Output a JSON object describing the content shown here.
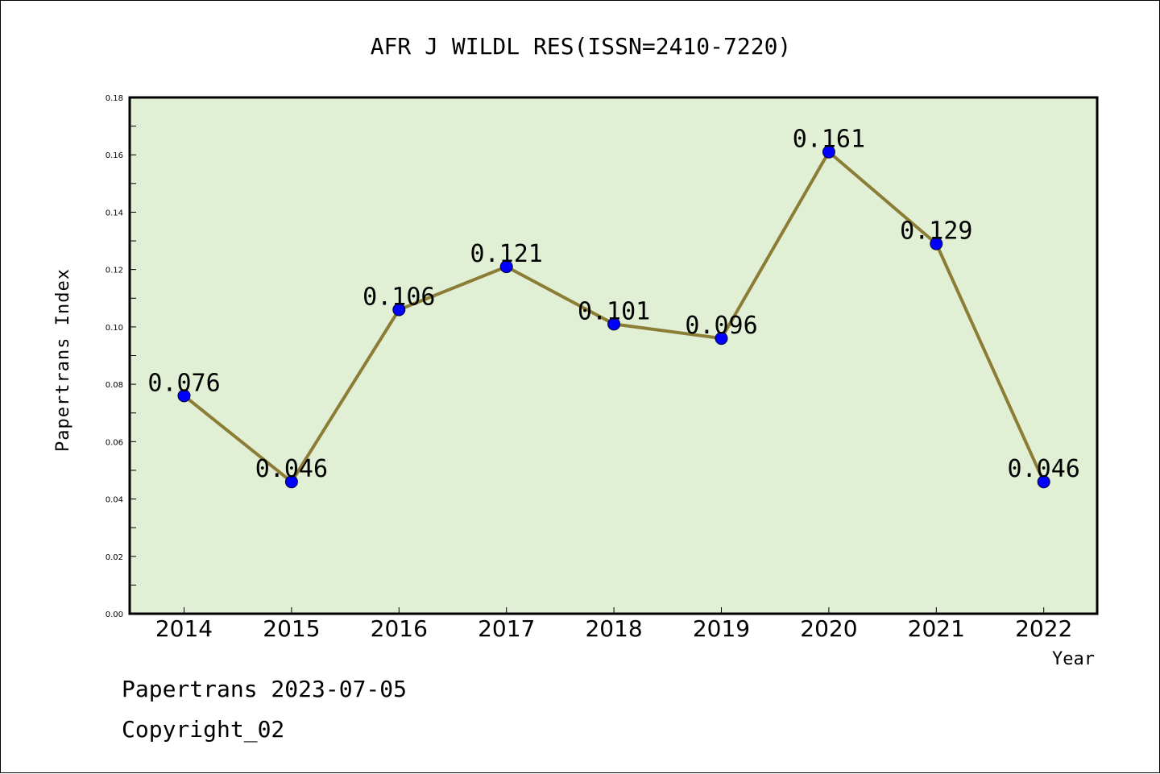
{
  "chart_data": {
    "type": "line",
    "title": "AFR J WILDL RES(ISSN=2410-7220)",
    "xlabel": "Year",
    "ylabel": "Papertrans Index",
    "categories": [
      "2014",
      "2015",
      "2016",
      "2017",
      "2018",
      "2019",
      "2020",
      "2021",
      "2022"
    ],
    "series": [
      {
        "values": [
          0.076,
          0.046,
          0.106,
          0.121,
          0.101,
          0.096,
          0.161,
          0.129,
          0.046
        ],
        "labels": [
          "0.076",
          "0.046",
          "0.106",
          "0.121",
          "0.101",
          "0.096",
          "0.161",
          "0.129",
          "0.046"
        ],
        "line_color": "#8b7d35",
        "marker_color": "#0000ff"
      }
    ],
    "ylim": [
      0,
      0.18
    ],
    "yticks": [
      "0.00",
      "0.02",
      "0.04",
      "0.06",
      "0.08",
      "0.10",
      "0.12",
      "0.14",
      "0.16",
      "0.18"
    ],
    "plot_background": "#e1efd5",
    "grid": false
  },
  "footer": {
    "line1": "Papertrans 2023-07-05",
    "line2": "Copyright_02"
  }
}
